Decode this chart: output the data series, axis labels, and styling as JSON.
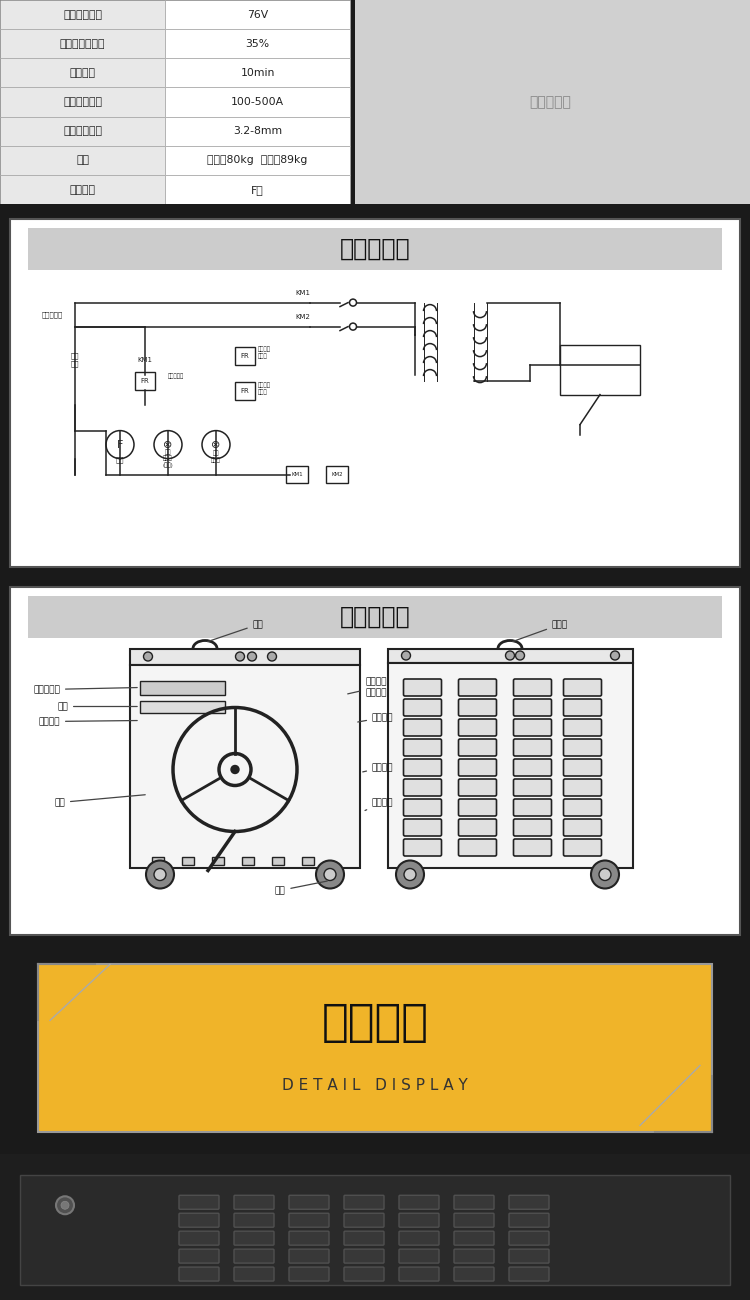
{
  "bg_color": "#1a1a1a",
  "section1_bg": "#ffffff",
  "section2_bg": "#ffffff",
  "section3_bg": "#f0b429",
  "table_rows": [
    [
      "额定空载电压",
      "76V"
    ],
    [
      "额定负载持续率",
      "35%"
    ],
    [
      "工作周期",
      "10min"
    ],
    [
      "电流调节范围",
      "100-500A"
    ],
    [
      "使用焊条直径",
      "3.2-8mm"
    ],
    [
      "重量",
      "普通款80kg  国标款89kg"
    ],
    [
      "绝缘等级",
      "F级"
    ]
  ],
  "circuit_title": "线路原理图",
  "structure_title": "产品结构图",
  "detail_title": "细节展示",
  "detail_sub": "D E T A I L   D I S P L A Y",
  "table_header_bg": "#e8e8e8",
  "table_value_bg": "#ffffff",
  "table_border": "#aaaaaa",
  "circuit_bg": "#ffffff",
  "circuit_border": "#555555",
  "circuit_title_bg": "#cccccc",
  "structure_bg": "#ffffff",
  "structure_border": "#555555",
  "structure_title_bg": "#cccccc",
  "detail_bg": "#f0b429",
  "detail_box_border": "#999999",
  "bottom_bg": "#222222"
}
